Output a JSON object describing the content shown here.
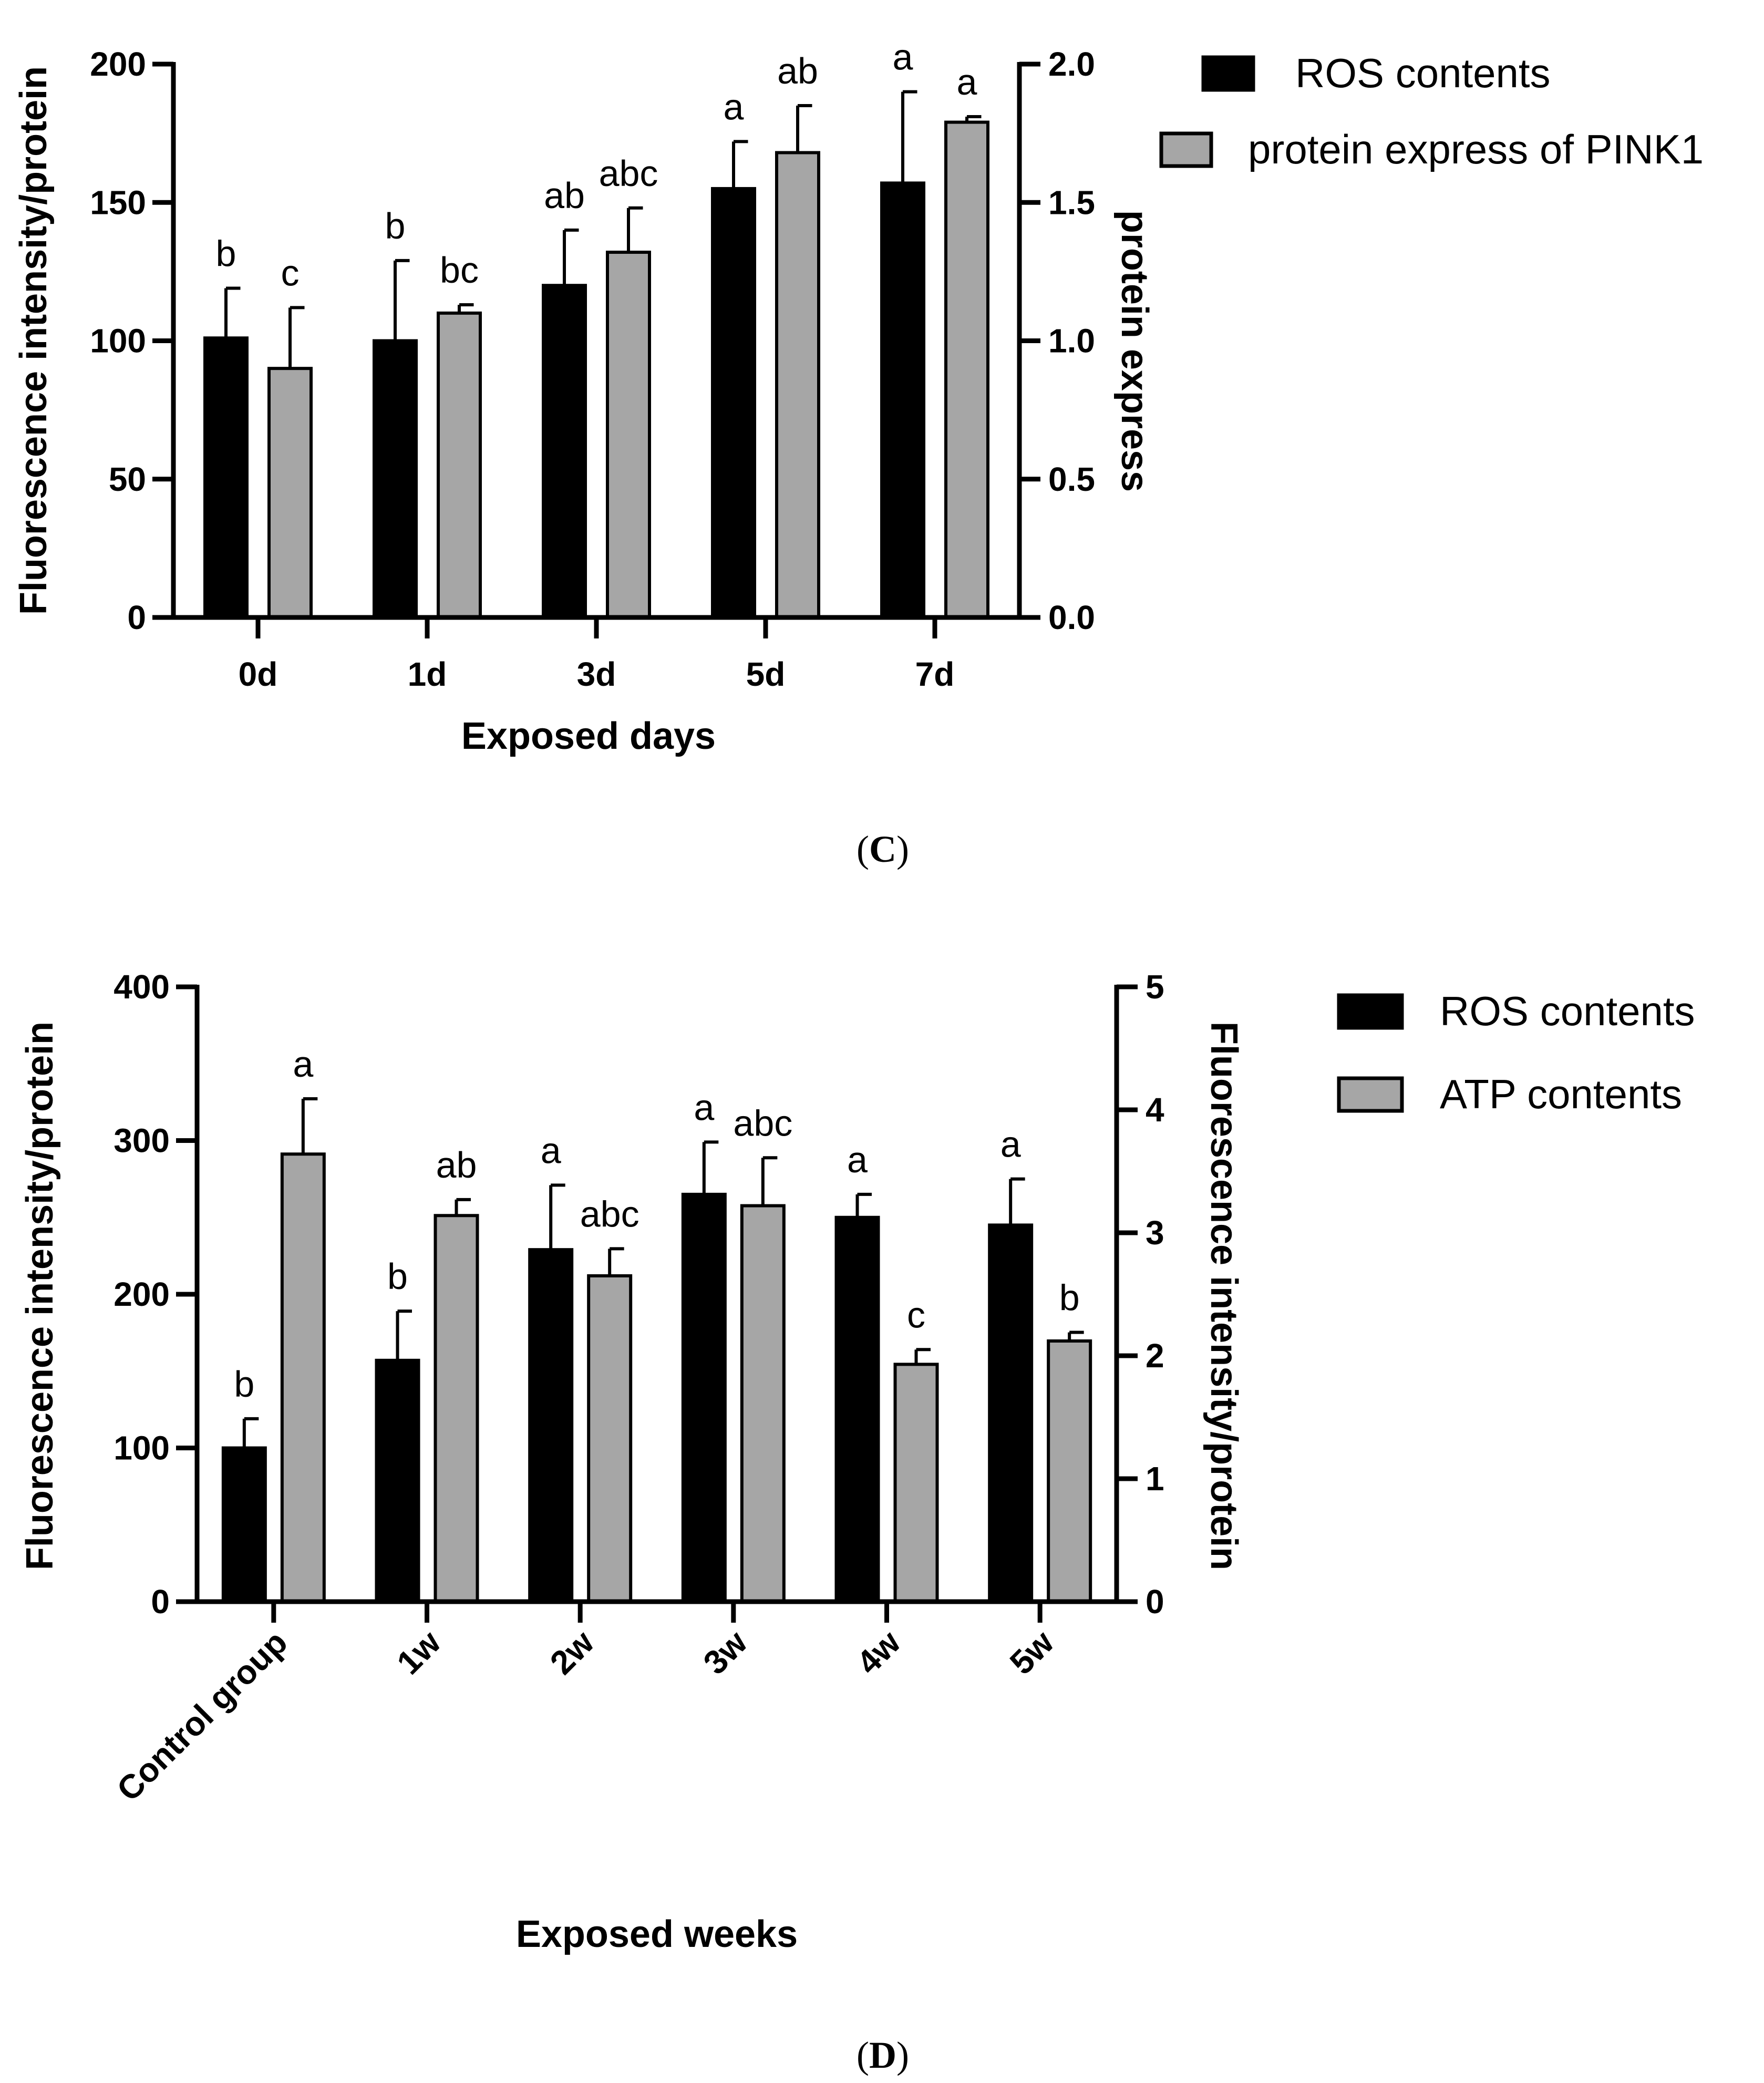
{
  "chart_data": [
    {
      "panel": "C",
      "type": "bar",
      "xlabel": "Exposed days",
      "ylabel_left": "Fluorescence intensity/protein",
      "ylabel_right": "protein express",
      "ylim_left": [
        0,
        200
      ],
      "ylim_right": [
        0,
        2.0
      ],
      "yticks_left": [
        "0",
        "50",
        "100",
        "150",
        "200"
      ],
      "yticks_right": [
        "0.0",
        "0.5",
        "1.0",
        "1.5",
        "2.0"
      ],
      "categories": [
        "0d",
        "1d",
        "3d",
        "5d",
        "7d"
      ],
      "series": [
        {
          "name": "ROS contents",
          "axis": "left",
          "color": "#000000",
          "values": [
            101,
            100,
            120,
            155,
            157
          ],
          "errors": [
            18,
            29,
            20,
            17,
            33
          ],
          "labels": [
            "b",
            "b",
            "ab",
            "a",
            "a"
          ]
        },
        {
          "name": "protein express of PINK1",
          "axis": "right",
          "color": "#a6a6a6",
          "values": [
            0.9,
            1.1,
            1.32,
            1.68,
            1.79
          ],
          "errors": [
            0.22,
            0.03,
            0.16,
            0.17,
            0.02
          ],
          "labels": [
            "c",
            "bc",
            "abc",
            "ab",
            "a"
          ]
        }
      ],
      "caption": "C"
    },
    {
      "panel": "D",
      "type": "bar",
      "xlabel": "Exposed weeks",
      "ylabel_left": "Fluorescence intensity/protein",
      "ylabel_right": "Fluorescence intensity/protein",
      "ylim_left": [
        0,
        400
      ],
      "ylim_right": [
        0,
        5
      ],
      "yticks_left": [
        "0",
        "100",
        "200",
        "300",
        "400"
      ],
      "yticks_right": [
        "0",
        "1",
        "2",
        "3",
        "4",
        "5"
      ],
      "categories": [
        "Control group",
        "1w",
        "2w",
        "3w",
        "4w",
        "5w"
      ],
      "series": [
        {
          "name": "ROS contents",
          "axis": "left",
          "color": "#000000",
          "values": [
            100,
            157,
            229,
            265,
            250,
            245
          ],
          "errors": [
            19,
            32,
            42,
            34,
            15,
            30
          ],
          "labels": [
            "b",
            "b",
            "a",
            "a",
            "a",
            "a"
          ]
        },
        {
          "name": "ATP contents",
          "axis": "right",
          "color": "#a6a6a6",
          "values": [
            3.64,
            3.14,
            2.65,
            3.22,
            1.93,
            2.12
          ],
          "errors": [
            0.45,
            0.13,
            0.22,
            0.39,
            0.12,
            0.07
          ],
          "labels": [
            "a",
            "ab",
            "abc",
            "abc",
            "c",
            "b"
          ]
        }
      ],
      "caption": "D"
    }
  ]
}
